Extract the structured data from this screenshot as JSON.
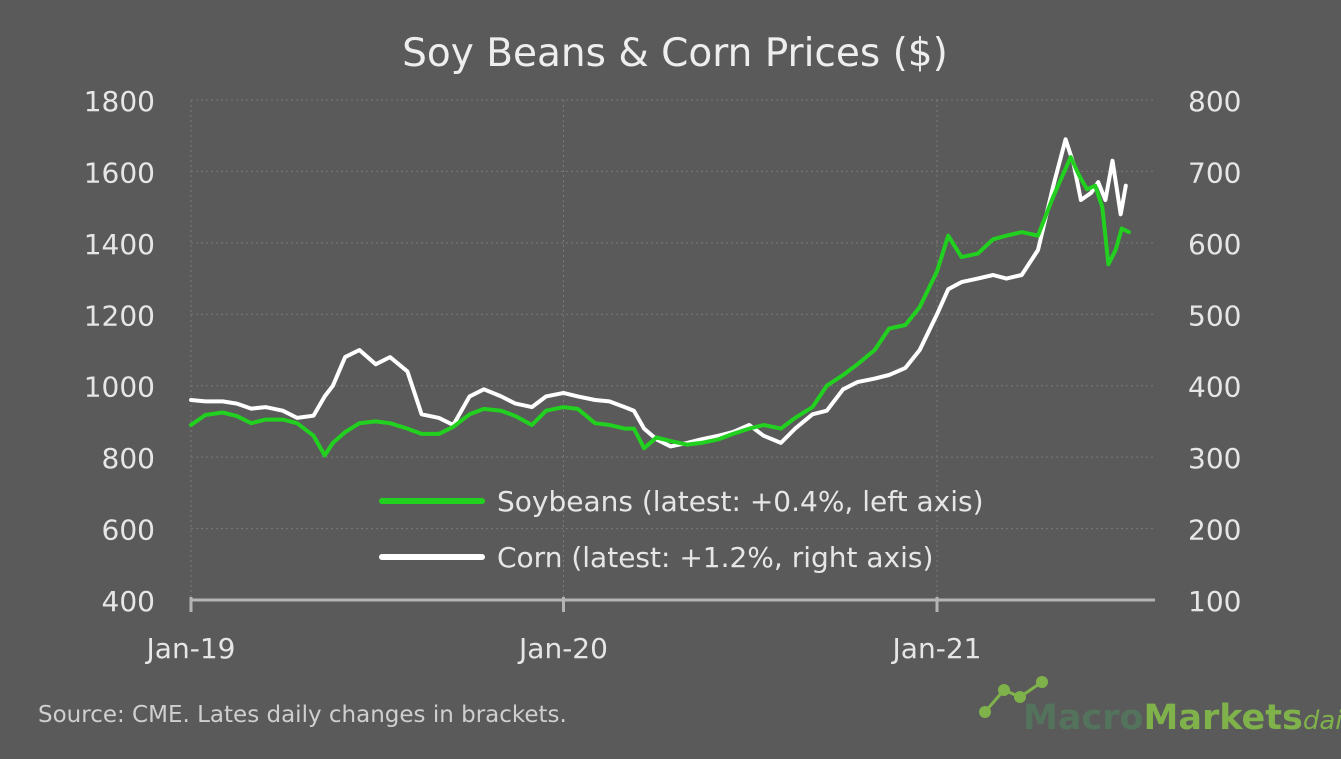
{
  "colors": {
    "background": "#5a5a5a",
    "soybeans": "#22d11f",
    "corn": "#ffffff",
    "text": "#e6e6e6",
    "grid": "#7a7a7a",
    "axis": "#b4b4b4",
    "logo_green": "#7fb24a",
    "logo_dark": "#53735d"
  },
  "chart_data": {
    "type": "line",
    "title": "Soy Beans & Corn Prices ($)",
    "x_ticks": [
      "Jan-19",
      "Jan-20",
      "Jan-21"
    ],
    "xlim": [
      "2019-01-01",
      "2021-07-01"
    ],
    "ylim_left": [
      400,
      1800
    ],
    "ylim_right": [
      100,
      800
    ],
    "yticks_left": [
      "1800",
      "1600",
      "1400",
      "1200",
      "1000",
      "800",
      "600",
      "400"
    ],
    "yticks_right": [
      "800",
      "700",
      "600",
      "500",
      "400",
      "300",
      "200",
      "100"
    ],
    "grid": true,
    "legend_position": "bottom-center",
    "series": [
      {
        "name": "Soybeans (latest: +0.4%, left axis)",
        "axis": "left",
        "color": "#22d11f",
        "points": [
          [
            "2019-01-01",
            890
          ],
          [
            "2019-01-15",
            918
          ],
          [
            "2019-02-01",
            925
          ],
          [
            "2019-02-15",
            915
          ],
          [
            "2019-03-01",
            895
          ],
          [
            "2019-03-15",
            905
          ],
          [
            "2019-04-01",
            905
          ],
          [
            "2019-04-15",
            895
          ],
          [
            "2019-05-01",
            860
          ],
          [
            "2019-05-12",
            805
          ],
          [
            "2019-05-20",
            840
          ],
          [
            "2019-06-01",
            870
          ],
          [
            "2019-06-15",
            895
          ],
          [
            "2019-07-01",
            900
          ],
          [
            "2019-07-15",
            895
          ],
          [
            "2019-08-01",
            880
          ],
          [
            "2019-08-15",
            865
          ],
          [
            "2019-09-01",
            865
          ],
          [
            "2019-09-15",
            885
          ],
          [
            "2019-10-01",
            920
          ],
          [
            "2019-10-15",
            935
          ],
          [
            "2019-11-01",
            930
          ],
          [
            "2019-11-15",
            915
          ],
          [
            "2019-12-01",
            890
          ],
          [
            "2019-12-15",
            930
          ],
          [
            "2020-01-01",
            940
          ],
          [
            "2020-01-15",
            935
          ],
          [
            "2020-02-01",
            895
          ],
          [
            "2020-02-15",
            890
          ],
          [
            "2020-03-01",
            880
          ],
          [
            "2020-03-10",
            880
          ],
          [
            "2020-03-20",
            825
          ],
          [
            "2020-04-01",
            855
          ],
          [
            "2020-04-15",
            845
          ],
          [
            "2020-05-01",
            835
          ],
          [
            "2020-05-15",
            840
          ],
          [
            "2020-06-01",
            850
          ],
          [
            "2020-06-15",
            865
          ],
          [
            "2020-07-01",
            880
          ],
          [
            "2020-07-15",
            890
          ],
          [
            "2020-08-01",
            880
          ],
          [
            "2020-08-15",
            910
          ],
          [
            "2020-09-01",
            940
          ],
          [
            "2020-09-15",
            1000
          ],
          [
            "2020-10-01",
            1030
          ],
          [
            "2020-10-15",
            1060
          ],
          [
            "2020-11-01",
            1100
          ],
          [
            "2020-11-15",
            1160
          ],
          [
            "2020-12-01",
            1170
          ],
          [
            "2020-12-15",
            1220
          ],
          [
            "2021-01-01",
            1320
          ],
          [
            "2021-01-12",
            1420
          ],
          [
            "2021-01-25",
            1360
          ],
          [
            "2021-02-10",
            1370
          ],
          [
            "2021-02-25",
            1410
          ],
          [
            "2021-03-10",
            1420
          ],
          [
            "2021-03-25",
            1430
          ],
          [
            "2021-04-10",
            1420
          ],
          [
            "2021-04-25",
            1530
          ],
          [
            "2021-05-12",
            1640
          ],
          [
            "2021-05-20",
            1590
          ],
          [
            "2021-05-28",
            1550
          ],
          [
            "2021-06-05",
            1560
          ],
          [
            "2021-06-12",
            1500
          ],
          [
            "2021-06-18",
            1340
          ],
          [
            "2021-06-25",
            1380
          ],
          [
            "2021-07-01",
            1440
          ],
          [
            "2021-07-08",
            1430
          ]
        ]
      },
      {
        "name": "Corn (latest: +1.2%, right axis)",
        "axis": "right",
        "color": "#ffffff",
        "points": [
          [
            "2019-01-01",
            380
          ],
          [
            "2019-01-15",
            378
          ],
          [
            "2019-02-01",
            378
          ],
          [
            "2019-02-15",
            375
          ],
          [
            "2019-03-01",
            368
          ],
          [
            "2019-03-15",
            370
          ],
          [
            "2019-04-01",
            365
          ],
          [
            "2019-04-15",
            355
          ],
          [
            "2019-05-01",
            358
          ],
          [
            "2019-05-12",
            385
          ],
          [
            "2019-05-20",
            400
          ],
          [
            "2019-06-01",
            440
          ],
          [
            "2019-06-15",
            450
          ],
          [
            "2019-07-01",
            430
          ],
          [
            "2019-07-15",
            440
          ],
          [
            "2019-08-01",
            420
          ],
          [
            "2019-08-15",
            360
          ],
          [
            "2019-09-01",
            355
          ],
          [
            "2019-09-15",
            345
          ],
          [
            "2019-10-01",
            385
          ],
          [
            "2019-10-15",
            395
          ],
          [
            "2019-11-01",
            385
          ],
          [
            "2019-11-15",
            375
          ],
          [
            "2019-12-01",
            370
          ],
          [
            "2019-12-15",
            385
          ],
          [
            "2020-01-01",
            390
          ],
          [
            "2020-01-15",
            385
          ],
          [
            "2020-02-01",
            380
          ],
          [
            "2020-02-15",
            378
          ],
          [
            "2020-03-01",
            370
          ],
          [
            "2020-03-10",
            365
          ],
          [
            "2020-03-20",
            340
          ],
          [
            "2020-04-01",
            325
          ],
          [
            "2020-04-15",
            315
          ],
          [
            "2020-05-01",
            320
          ],
          [
            "2020-05-15",
            325
          ],
          [
            "2020-06-01",
            330
          ],
          [
            "2020-06-15",
            335
          ],
          [
            "2020-07-01",
            345
          ],
          [
            "2020-07-15",
            330
          ],
          [
            "2020-08-01",
            320
          ],
          [
            "2020-08-15",
            340
          ],
          [
            "2020-09-01",
            360
          ],
          [
            "2020-09-15",
            365
          ],
          [
            "2020-10-01",
            395
          ],
          [
            "2020-10-15",
            405
          ],
          [
            "2020-11-01",
            410
          ],
          [
            "2020-11-15",
            415
          ],
          [
            "2020-12-01",
            425
          ],
          [
            "2020-12-15",
            450
          ],
          [
            "2021-01-01",
            500
          ],
          [
            "2021-01-12",
            535
          ],
          [
            "2021-01-25",
            545
          ],
          [
            "2021-02-10",
            550
          ],
          [
            "2021-02-25",
            555
          ],
          [
            "2021-03-10",
            550
          ],
          [
            "2021-03-25",
            555
          ],
          [
            "2021-04-10",
            590
          ],
          [
            "2021-04-25",
            680
          ],
          [
            "2021-05-07",
            745
          ],
          [
            "2021-05-15",
            710
          ],
          [
            "2021-05-22",
            660
          ],
          [
            "2021-06-01",
            670
          ],
          [
            "2021-06-08",
            685
          ],
          [
            "2021-06-15",
            660
          ],
          [
            "2021-06-22",
            715
          ],
          [
            "2021-06-30",
            640
          ],
          [
            "2021-07-05",
            680
          ]
        ]
      }
    ]
  },
  "source_note": "Source: CME. Lates daily changes in brackets.",
  "logo": {
    "part1": "Macro",
    "part2": "Markets",
    "part3": "daily",
    "icon": "line-chart-nodes-icon"
  }
}
